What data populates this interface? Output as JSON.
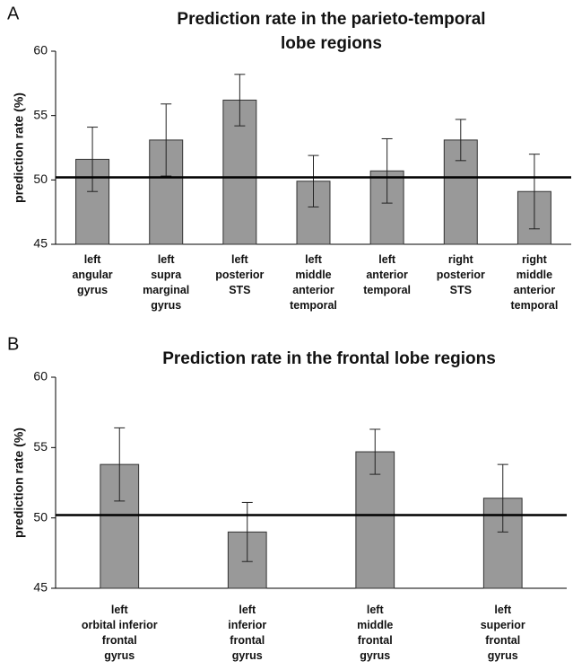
{
  "chart_data": [
    {
      "type": "bar",
      "panel_label": "A",
      "title": [
        "Prediction rate in the parieto-temporal",
        "lobe regions"
      ],
      "y_label": "prediction rate (%)",
      "categories": [
        [
          "left",
          "angular",
          "gyrus"
        ],
        [
          "left",
          "supra",
          "marginal",
          "gyrus"
        ],
        [
          "left",
          "posterior",
          "STS"
        ],
        [
          "left",
          "middle",
          "anterior",
          "temporal"
        ],
        [
          "left",
          "anterior",
          "temporal"
        ],
        [
          "right",
          "posterior",
          "STS"
        ],
        [
          "right",
          "middle",
          "anterior",
          "temporal"
        ]
      ],
      "values": [
        51.6,
        53.1,
        56.2,
        49.9,
        50.7,
        53.1,
        49.1
      ],
      "errors": [
        2.5,
        2.8,
        2.0,
        2.0,
        2.5,
        1.6,
        2.9
      ],
      "color": "#999999",
      "reference_line": 50.2,
      "ylim": [
        45,
        60
      ],
      "yticks": [
        45,
        50,
        55,
        60
      ]
    },
    {
      "type": "bar",
      "panel_label": "B",
      "title": [
        "Prediction rate in the frontal lobe regions"
      ],
      "y_label": "prediction rate (%)",
      "categories": [
        [
          "left",
          "orbital inferior",
          "frontal",
          "gyrus"
        ],
        [
          "left",
          "inferior",
          "frontal",
          "gyrus"
        ],
        [
          "left",
          "middle",
          "frontal",
          "gyrus"
        ],
        [
          "left",
          "superior",
          "frontal",
          "gyrus"
        ]
      ],
      "values": [
        53.8,
        49.0,
        54.7,
        51.4
      ],
      "errors": [
        2.6,
        2.1,
        1.6,
        2.4
      ],
      "color": "#999999",
      "reference_line": 50.2,
      "ylim": [
        45,
        60
      ],
      "yticks": [
        45,
        50,
        55,
        60
      ]
    }
  ]
}
